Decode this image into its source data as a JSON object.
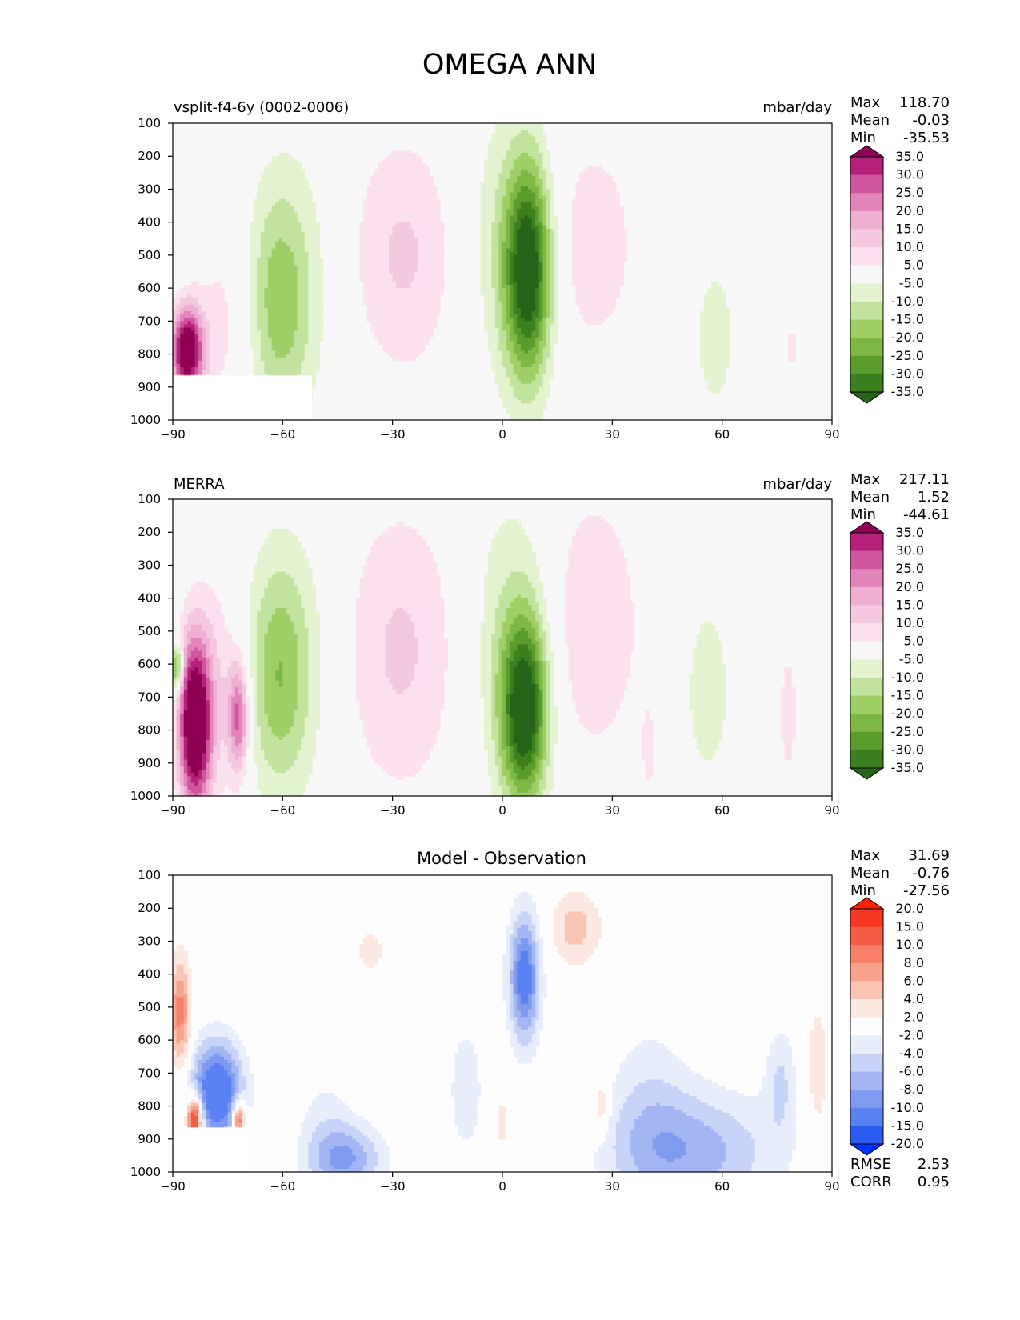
{
  "figure": {
    "title": "OMEGA ANN"
  },
  "x_ticks": [
    "−90",
    "−60",
    "−30",
    "0",
    "30",
    "60",
    "90"
  ],
  "y_ticks": [
    "100",
    "200",
    "300",
    "400",
    "500",
    "600",
    "700",
    "800",
    "900",
    "1000"
  ],
  "colors": {
    "field": [
      "#276419",
      "#3c7f1e",
      "#5a9c2c",
      "#7cb843",
      "#9fce66",
      "#c2e39d",
      "#e3f2cf",
      "#f7f7f7",
      "#fbe1ee",
      "#f5c8e1",
      "#efafd3",
      "#e283b9",
      "#d0559e",
      "#b5207a",
      "#8e0152"
    ],
    "diff": [
      "#0033ff",
      "#2a5cf2",
      "#5a82f2",
      "#7f9bef",
      "#a3b6f3",
      "#c7d3f7",
      "#e8edfb",
      "#fdfdfd",
      "#fde8e1",
      "#fbc5b4",
      "#f9a28b",
      "#f8806a",
      "#f75c45",
      "#f73722",
      "#ff2200"
    ]
  },
  "chart_data": [
    {
      "type": "heatmap",
      "title_left": "vsplit-f4-6y (0002-0006)",
      "title_right": "mbar/day",
      "xlim": [
        -90,
        90
      ],
      "ylim": [
        1000,
        100
      ],
      "stats": [
        {
          "label": "Max",
          "value": "118.70"
        },
        {
          "label": "Mean",
          "value": "-0.03"
        },
        {
          "label": "Min",
          "value": "-35.53"
        }
      ],
      "colorbar_labels": [
        "35.0",
        "30.0",
        "25.0",
        "20.0",
        "15.0",
        "10.0",
        "5.0",
        "-5.0",
        "-10.0",
        "-15.0",
        "-20.0",
        "-25.0",
        "-30.0",
        "-35.0"
      ],
      "features": [
        {
          "lat": 7,
          "p": 550,
          "w": 4.5,
          "h": 230,
          "amp": -40
        },
        {
          "lat": 0,
          "p": 450,
          "w": 9,
          "h": 320,
          "amp": -8
        },
        {
          "lat": -27,
          "p": 500,
          "w": 11,
          "h": 260,
          "amp": 11
        },
        {
          "lat": 24,
          "p": 470,
          "w": 10,
          "h": 260,
          "amp": 8
        },
        {
          "lat": -61,
          "p": 650,
          "w": 6,
          "h": 240,
          "amp": -14
        },
        {
          "lat": -57,
          "p": 570,
          "w": 10,
          "h": 320,
          "amp": -6
        },
        {
          "lat": -76,
          "p": 700,
          "w": 6,
          "h": 240,
          "amp": 7
        },
        {
          "lat": -86,
          "p": 790,
          "w": 3,
          "h": 90,
          "amp": 45
        },
        {
          "lat": 58,
          "p": 750,
          "w": 7,
          "h": 280,
          "amp": -6
        },
        {
          "lat": 79,
          "p": 780,
          "w": 1.5,
          "h": 80,
          "amp": 6
        }
      ],
      "mask": {
        "from": -90,
        "to": -52,
        "p": 865
      }
    },
    {
      "type": "heatmap",
      "title_left": "MERRA",
      "title_right": "mbar/day",
      "xlim": [
        -90,
        90
      ],
      "ylim": [
        1000,
        100
      ],
      "stats": [
        {
          "label": "Max",
          "value": "217.11"
        },
        {
          "label": "Mean",
          "value": "1.52"
        },
        {
          "label": "Min",
          "value": "-44.61"
        }
      ],
      "colorbar_labels": [
        "35.0",
        "30.0",
        "25.0",
        "20.0",
        "15.0",
        "10.0",
        "5.0",
        "-5.0",
        "-10.0",
        "-15.0",
        "-20.0",
        "-25.0",
        "-30.0",
        "-35.0"
      ],
      "features": [
        {
          "lat": 6,
          "p": 740,
          "w": 4.5,
          "h": 200,
          "amp": -40
        },
        {
          "lat": 2,
          "p": 500,
          "w": 9,
          "h": 330,
          "amp": -9
        },
        {
          "lat": -28,
          "p": 560,
          "w": 12,
          "h": 310,
          "amp": 11
        },
        {
          "lat": 24,
          "p": 480,
          "w": 10,
          "h": 290,
          "amp": 10
        },
        {
          "lat": -61,
          "p": 640,
          "w": 6,
          "h": 240,
          "amp": -15
        },
        {
          "lat": -57,
          "p": 580,
          "w": 10,
          "h": 320,
          "amp": -6
        },
        {
          "lat": -84,
          "p": 780,
          "w": 3,
          "h": 180,
          "amp": 48
        },
        {
          "lat": -72,
          "p": 760,
          "w": 2,
          "h": 120,
          "amp": 26
        },
        {
          "lat": -78,
          "p": 680,
          "w": 5,
          "h": 260,
          "amp": 9
        },
        {
          "lat": 56,
          "p": 680,
          "w": 6,
          "h": 260,
          "amp": -7
        },
        {
          "lat": 78,
          "p": 750,
          "w": 3,
          "h": 250,
          "amp": 6
        },
        {
          "lat": 40,
          "p": 880,
          "w": 2,
          "h": 150,
          "amp": 5
        },
        {
          "lat": -89,
          "p": 610,
          "w": 1.2,
          "h": 50,
          "amp": -28
        }
      ],
      "mask": null
    },
    {
      "type": "heatmap",
      "title_center": "Model - Observation",
      "xlim": [
        -90,
        90
      ],
      "ylim": [
        1000,
        100
      ],
      "stats": [
        {
          "label": "Max",
          "value": "31.69"
        },
        {
          "label": "Mean",
          "value": "-0.76"
        },
        {
          "label": "Min",
          "value": "-27.56"
        }
      ],
      "extra_stats": [
        {
          "label": "RMSE",
          "value": "2.53"
        },
        {
          "label": "CORR",
          "value": "0.95"
        }
      ],
      "colorbar_labels": [
        "20.0",
        "15.0",
        "10.0",
        "8.0",
        "6.0",
        "4.0",
        "2.0",
        "-2.0",
        "-4.0",
        "-6.0",
        "-8.0",
        "-10.0",
        "-15.0",
        "-20.0"
      ],
      "features": [
        {
          "lat": 6,
          "p": 410,
          "w": 3,
          "h": 140,
          "amp": -12
        },
        {
          "lat": 20,
          "p": 260,
          "w": 5,
          "h": 80,
          "amp": 5
        },
        {
          "lat": -36,
          "p": 330,
          "w": 3,
          "h": 60,
          "amp": 3
        },
        {
          "lat": -78,
          "p": 760,
          "w": 5,
          "h": 110,
          "amp": -14
        },
        {
          "lat": -88,
          "p": 520,
          "w": 2,
          "h": 120,
          "amp": 9
        },
        {
          "lat": -84,
          "p": 840,
          "w": 1.5,
          "h": 50,
          "amp": 18
        },
        {
          "lat": -72,
          "p": 840,
          "w": 1.2,
          "h": 40,
          "amp": 14
        },
        {
          "lat": -42,
          "p": 960,
          "w": 7,
          "h": 70,
          "amp": -7
        },
        {
          "lat": -48,
          "p": 900,
          "w": 6,
          "h": 150,
          "amp": -3
        },
        {
          "lat": 52,
          "p": 940,
          "w": 16,
          "h": 130,
          "amp": -7
        },
        {
          "lat": 40,
          "p": 800,
          "w": 8,
          "h": 200,
          "amp": -3
        },
        {
          "lat": -10,
          "p": 750,
          "w": 3,
          "h": 130,
          "amp": -4
        },
        {
          "lat": 27,
          "p": 800,
          "w": 1.5,
          "h": 60,
          "amp": 5
        },
        {
          "lat": 86,
          "p": 700,
          "w": 2.5,
          "h": 200,
          "amp": 3
        },
        {
          "lat": 0,
          "p": 850,
          "w": 1.5,
          "h": 60,
          "amp": 3
        },
        {
          "lat": 76,
          "p": 720,
          "w": 3,
          "h": 120,
          "amp": -4
        }
      ],
      "mask": {
        "from": -90,
        "to": -68,
        "p": 865
      }
    }
  ]
}
